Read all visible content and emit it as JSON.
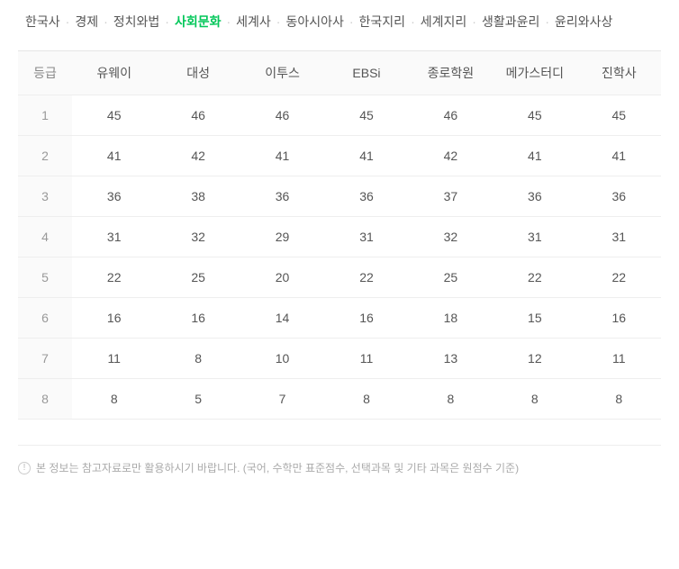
{
  "tabs": {
    "items": [
      {
        "label": "한국사",
        "active": false
      },
      {
        "label": "경제",
        "active": false
      },
      {
        "label": "정치와법",
        "active": false
      },
      {
        "label": "사회문화",
        "active": true
      },
      {
        "label": "세계사",
        "active": false
      },
      {
        "label": "동아시아사",
        "active": false
      },
      {
        "label": "한국지리",
        "active": false
      },
      {
        "label": "세계지리",
        "active": false
      },
      {
        "label": "생활과윤리",
        "active": false
      },
      {
        "label": "윤리와사상",
        "active": false
      }
    ],
    "separator": "·"
  },
  "table": {
    "type": "table",
    "background_color": "#ffffff",
    "header_bg": "#fafafa",
    "border_color": "#eeeeee",
    "text_color": "#555555",
    "grade_text_color": "#999999",
    "font_size": 14,
    "grade_header": "등급",
    "columns": [
      "유웨이",
      "대성",
      "이투스",
      "EBSi",
      "종로학원",
      "메가스터디",
      "진학사"
    ],
    "rows": [
      {
        "grade": "1",
        "values": [
          "45",
          "46",
          "46",
          "45",
          "46",
          "45",
          "45"
        ]
      },
      {
        "grade": "2",
        "values": [
          "41",
          "42",
          "41",
          "41",
          "42",
          "41",
          "41"
        ]
      },
      {
        "grade": "3",
        "values": [
          "36",
          "38",
          "36",
          "36",
          "37",
          "36",
          "36"
        ]
      },
      {
        "grade": "4",
        "values": [
          "31",
          "32",
          "29",
          "31",
          "32",
          "31",
          "31"
        ]
      },
      {
        "grade": "5",
        "values": [
          "22",
          "25",
          "20",
          "22",
          "25",
          "22",
          "22"
        ]
      },
      {
        "grade": "6",
        "values": [
          "16",
          "16",
          "14",
          "16",
          "18",
          "15",
          "16"
        ]
      },
      {
        "grade": "7",
        "values": [
          "11",
          "8",
          "10",
          "11",
          "13",
          "12",
          "11"
        ]
      },
      {
        "grade": "8",
        "values": [
          "8",
          "5",
          "7",
          "8",
          "8",
          "8",
          "8"
        ]
      }
    ]
  },
  "footnote": {
    "icon_label": "!",
    "text": "본 정보는 참고자료로만 활용하시기 바랍니다. (국어, 수학만 표준점수, 선택과목 및 기타 과목은 원점수 기준)"
  },
  "colors": {
    "active_tab": "#03c75a",
    "tab_text": "#555555",
    "separator": "#cccccc",
    "footnote_text": "#aaaaaa"
  }
}
